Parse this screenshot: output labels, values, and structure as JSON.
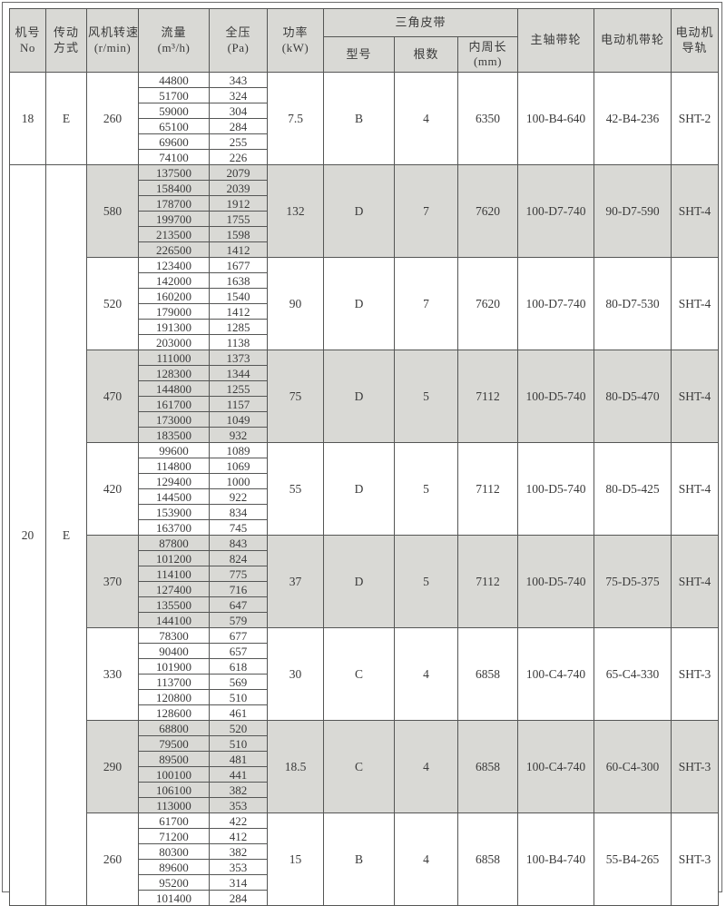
{
  "header": {
    "machine_no": [
      "机号",
      "No"
    ],
    "transmission": [
      "传动",
      "方式"
    ],
    "fan_speed": [
      "风机转速",
      "(r/min)"
    ],
    "flow": [
      "流量",
      "(m³/h)"
    ],
    "pressure": [
      "全压",
      "(Pa)"
    ],
    "power": [
      "功率",
      "(kW)"
    ],
    "v_belt": "三角皮带",
    "belt_model": "型号",
    "belt_count": "根数",
    "belt_length": [
      "内周长",
      "(mm)"
    ],
    "main_pulley": "主轴带轮",
    "motor_pulley": "电动机带轮",
    "motor_rail": [
      "电动机",
      "导轨"
    ]
  },
  "machines": [
    {
      "no": "18",
      "transmission": "E",
      "groups": [
        {
          "speed": "260",
          "shaded": false,
          "power": "7.5",
          "belt_model": "B",
          "belt_count": "4",
          "belt_length": "6350",
          "main_pulley": "100-B4-640",
          "motor_pulley": "42-B4-236",
          "motor_rail": "SHT-2",
          "rows": [
            {
              "flow": "44800",
              "pressure": "343"
            },
            {
              "flow": "51700",
              "pressure": "324"
            },
            {
              "flow": "59000",
              "pressure": "304"
            },
            {
              "flow": "65100",
              "pressure": "284"
            },
            {
              "flow": "69600",
              "pressure": "255"
            },
            {
              "flow": "74100",
              "pressure": "226"
            }
          ]
        }
      ]
    },
    {
      "no": "20",
      "transmission": "E",
      "groups": [
        {
          "speed": "580",
          "shaded": true,
          "power": "132",
          "belt_model": "D",
          "belt_count": "7",
          "belt_length": "7620",
          "main_pulley": "100-D7-740",
          "motor_pulley": "90-D7-590",
          "motor_rail": "SHT-4",
          "rows": [
            {
              "flow": "137500",
              "pressure": "2079"
            },
            {
              "flow": "158400",
              "pressure": "2039"
            },
            {
              "flow": "178700",
              "pressure": "1912"
            },
            {
              "flow": "199700",
              "pressure": "1755"
            },
            {
              "flow": "213500",
              "pressure": "1598"
            },
            {
              "flow": "226500",
              "pressure": "1412"
            }
          ]
        },
        {
          "speed": "520",
          "shaded": false,
          "power": "90",
          "belt_model": "D",
          "belt_count": "7",
          "belt_length": "7620",
          "main_pulley": "100-D7-740",
          "motor_pulley": "80-D7-530",
          "motor_rail": "SHT-4",
          "rows": [
            {
              "flow": "123400",
              "pressure": "1677"
            },
            {
              "flow": "142000",
              "pressure": "1638"
            },
            {
              "flow": "160200",
              "pressure": "1540"
            },
            {
              "flow": "179000",
              "pressure": "1412"
            },
            {
              "flow": "191300",
              "pressure": "1285"
            },
            {
              "flow": "203000",
              "pressure": "1138"
            }
          ]
        },
        {
          "speed": "470",
          "shaded": true,
          "power": "75",
          "belt_model": "D",
          "belt_count": "5",
          "belt_length": "7112",
          "main_pulley": "100-D5-740",
          "motor_pulley": "80-D5-470",
          "motor_rail": "SHT-4",
          "rows": [
            {
              "flow": "111000",
              "pressure": "1373"
            },
            {
              "flow": "128300",
              "pressure": "1344"
            },
            {
              "flow": "144800",
              "pressure": "1255"
            },
            {
              "flow": "161700",
              "pressure": "1157"
            },
            {
              "flow": "173000",
              "pressure": "1049"
            },
            {
              "flow": "183500",
              "pressure": "932"
            }
          ]
        },
        {
          "speed": "420",
          "shaded": false,
          "power": "55",
          "belt_model": "D",
          "belt_count": "5",
          "belt_length": "7112",
          "main_pulley": "100-D5-740",
          "motor_pulley": "80-D5-425",
          "motor_rail": "SHT-4",
          "rows": [
            {
              "flow": "99600",
              "pressure": "1089"
            },
            {
              "flow": "114800",
              "pressure": "1069"
            },
            {
              "flow": "129400",
              "pressure": "1000"
            },
            {
              "flow": "144500",
              "pressure": "922"
            },
            {
              "flow": "153900",
              "pressure": "834"
            },
            {
              "flow": "163700",
              "pressure": "745"
            }
          ]
        },
        {
          "speed": "370",
          "shaded": true,
          "power": "37",
          "belt_model": "D",
          "belt_count": "5",
          "belt_length": "7112",
          "main_pulley": "100-D5-740",
          "motor_pulley": "75-D5-375",
          "motor_rail": "SHT-4",
          "rows": [
            {
              "flow": "87800",
              "pressure": "843"
            },
            {
              "flow": "101200",
              "pressure": "824"
            },
            {
              "flow": "114100",
              "pressure": "775"
            },
            {
              "flow": "127400",
              "pressure": "716"
            },
            {
              "flow": "135500",
              "pressure": "647"
            },
            {
              "flow": "144100",
              "pressure": "579"
            }
          ]
        },
        {
          "speed": "330",
          "shaded": false,
          "power": "30",
          "belt_model": "C",
          "belt_count": "4",
          "belt_length": "6858",
          "main_pulley": "100-C4-740",
          "motor_pulley": "65-C4-330",
          "motor_rail": "SHT-3",
          "rows": [
            {
              "flow": "78300",
              "pressure": "677"
            },
            {
              "flow": "90400",
              "pressure": "657"
            },
            {
              "flow": "101900",
              "pressure": "618"
            },
            {
              "flow": "113700",
              "pressure": "569"
            },
            {
              "flow": "120800",
              "pressure": "510"
            },
            {
              "flow": "128600",
              "pressure": "461"
            }
          ]
        },
        {
          "speed": "290",
          "shaded": true,
          "power": "18.5",
          "belt_model": "C",
          "belt_count": "4",
          "belt_length": "6858",
          "main_pulley": "100-C4-740",
          "motor_pulley": "60-C4-300",
          "motor_rail": "SHT-3",
          "rows": [
            {
              "flow": "68800",
              "pressure": "520"
            },
            {
              "flow": "79500",
              "pressure": "510"
            },
            {
              "flow": "89500",
              "pressure": "481"
            },
            {
              "flow": "100100",
              "pressure": "441"
            },
            {
              "flow": "106100",
              "pressure": "382"
            },
            {
              "flow": "113000",
              "pressure": "353"
            }
          ]
        },
        {
          "speed": "260",
          "shaded": false,
          "power": "15",
          "belt_model": "B",
          "belt_count": "4",
          "belt_length": "6858",
          "main_pulley": "100-B4-740",
          "motor_pulley": "55-B4-265",
          "motor_rail": "SHT-3",
          "rows": [
            {
              "flow": "61700",
              "pressure": "422"
            },
            {
              "flow": "71200",
              "pressure": "412"
            },
            {
              "flow": "80300",
              "pressure": "382"
            },
            {
              "flow": "89600",
              "pressure": "353"
            },
            {
              "flow": "95200",
              "pressure": "314"
            },
            {
              "flow": "101400",
              "pressure": "284"
            }
          ]
        }
      ]
    }
  ],
  "colors": {
    "shaded_row_bg": "#d9d9d5",
    "header_bg": "#d9d9d5",
    "border": "#555655",
    "text": "#3a3a3a"
  }
}
